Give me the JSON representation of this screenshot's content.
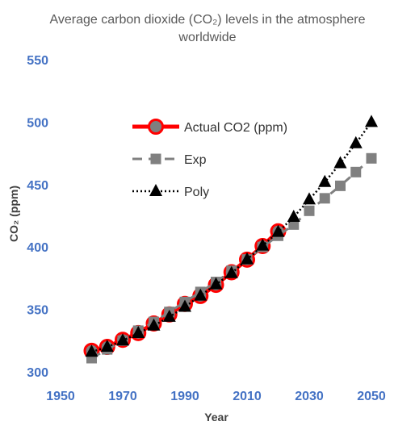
{
  "chart_data": {
    "type": "line",
    "title_line1": "Average carbon dioxide (CO₂) levels in the atmosphere",
    "title_line2": "worldwide",
    "xlabel": "Year",
    "ylabel": "CO₂ (ppm)",
    "xlim": [
      1950,
      2050
    ],
    "ylim": [
      300,
      550
    ],
    "xticks": [
      "1950",
      "1970",
      "1990",
      "2010",
      "2030",
      "2050"
    ],
    "yticks": [
      "300",
      "350",
      "400",
      "450",
      "500",
      "550"
    ],
    "grid": false,
    "legend_position": "inside-top-left",
    "series": [
      {
        "name": "Actual CO2 (ppm)",
        "color": "#FF0000",
        "style": "solid-circle",
        "x": [
          1960,
          1965,
          1970,
          1975,
          1980,
          1985,
          1990,
          1995,
          2000,
          2005,
          2010,
          2015,
          2020
        ],
        "y": [
          316.9,
          320.0,
          325.7,
          331.1,
          338.8,
          346.0,
          354.4,
          360.8,
          369.7,
          379.8,
          389.9,
          400.8,
          412.6
        ]
      },
      {
        "name": "Exp",
        "color": "#808080",
        "style": "dashed-square",
        "x": [
          1960,
          1965,
          1970,
          1975,
          1980,
          1985,
          1990,
          1995,
          2000,
          2005,
          2010,
          2015,
          2020,
          2025,
          2030,
          2035,
          2040,
          2045,
          2050
        ],
        "y": [
          311,
          318,
          325,
          333,
          340,
          348,
          356,
          364,
          372,
          381,
          390,
          400,
          409,
          418,
          429,
          439,
          449,
          460,
          471
        ]
      },
      {
        "name": "Poly",
        "color": "#000000",
        "style": "dotted-triangle",
        "x": [
          1960,
          1965,
          1970,
          1975,
          1980,
          1985,
          1990,
          1995,
          2000,
          2005,
          2010,
          2015,
          2020,
          2025,
          2030,
          2035,
          2040,
          2045,
          2050
        ],
        "y": [
          316,
          320,
          325,
          331,
          337,
          344,
          352,
          361,
          370,
          379,
          390,
          401,
          412,
          424,
          438,
          452,
          467,
          483,
          500
        ]
      }
    ]
  }
}
